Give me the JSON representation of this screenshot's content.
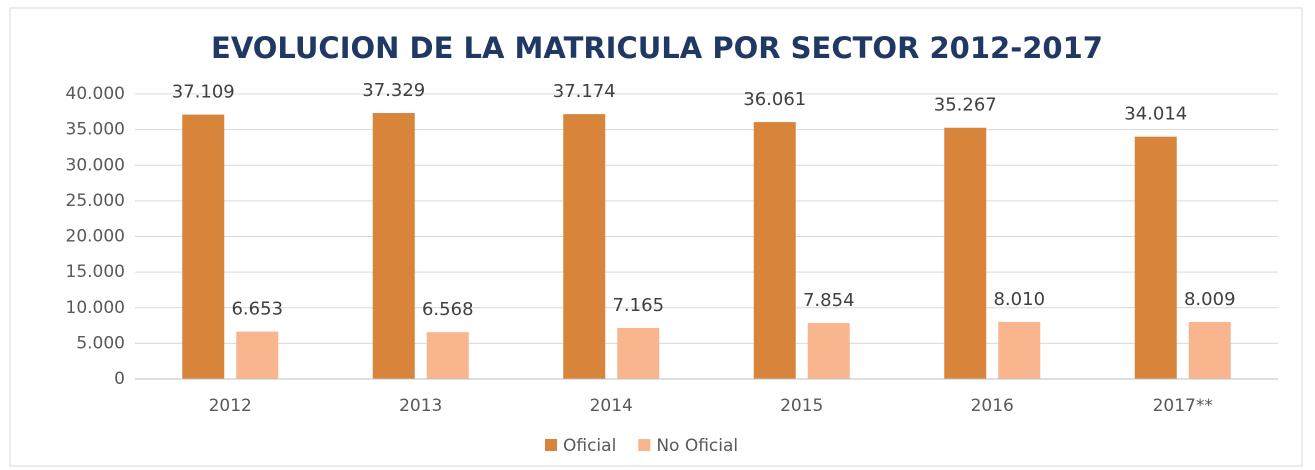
{
  "chart_data": {
    "type": "bar",
    "title": "EVOLUCION DE LA MATRICULA POR SECTOR 2012-2017",
    "categories": [
      "2012",
      "2013",
      "2014",
      "2015",
      "2016",
      "2017**"
    ],
    "series": [
      {
        "name": "Oficial",
        "color": "#d9843b",
        "values": [
          37109,
          37329,
          37174,
          36061,
          35267,
          34014
        ],
        "value_labels": [
          "37.109",
          "37.329",
          "37.174",
          "36.061",
          "35.267",
          "34.014"
        ]
      },
      {
        "name": "No Oficial",
        "color": "#f8b58e",
        "values": [
          6653,
          6568,
          7165,
          7854,
          8010,
          8009
        ],
        "value_labels": [
          "6.653",
          "6.568",
          "7.165",
          "7.854",
          "8.010",
          "8.009"
        ]
      }
    ],
    "ylim": [
      0,
      40000
    ],
    "yticks": [
      0,
      {
        "value": 5000,
        "label": "5.000"
      },
      {
        "value": 10000,
        "label": "10.000"
      },
      {
        "value": 15000,
        "label": "15.000"
      },
      {
        "value": 20000,
        "label": "20.000"
      },
      {
        "value": 25000,
        "label": "25.000"
      },
      {
        "value": 30000,
        "label": "30.000"
      },
      {
        "value": 35000,
        "label": "35.000"
      },
      {
        "value": 40000,
        "label": "40.000"
      }
    ],
    "grid": true,
    "legend": "bottom"
  }
}
